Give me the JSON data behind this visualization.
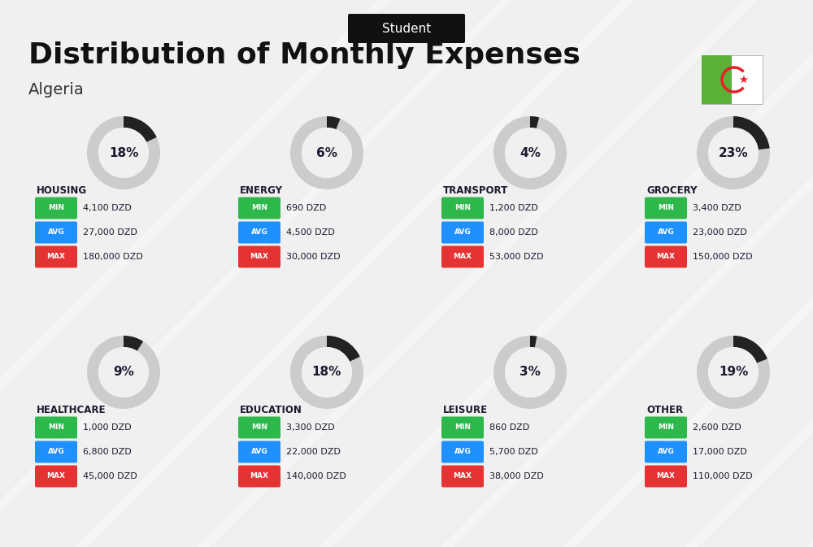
{
  "title": "Distribution of Monthly Expenses",
  "subtitle": "Algeria",
  "top_label": "Student",
  "bg_color": "#f0f0f0",
  "categories": [
    {
      "name": "HOUSING",
      "percent": 18,
      "min": "4,100 DZD",
      "avg": "27,000 DZD",
      "max": "180,000 DZD",
      "col": 0,
      "row": 0
    },
    {
      "name": "ENERGY",
      "percent": 6,
      "min": "690 DZD",
      "avg": "4,500 DZD",
      "max": "30,000 DZD",
      "col": 1,
      "row": 0
    },
    {
      "name": "TRANSPORT",
      "percent": 4,
      "min": "1,200 DZD",
      "avg": "8,000 DZD",
      "max": "53,000 DZD",
      "col": 2,
      "row": 0
    },
    {
      "name": "GROCERY",
      "percent": 23,
      "min": "3,400 DZD",
      "avg": "23,000 DZD",
      "max": "150,000 DZD",
      "col": 3,
      "row": 0
    },
    {
      "name": "HEALTHCARE",
      "percent": 9,
      "min": "1,000 DZD",
      "avg": "6,800 DZD",
      "max": "45,000 DZD",
      "col": 0,
      "row": 1
    },
    {
      "name": "EDUCATION",
      "percent": 18,
      "min": "3,300 DZD",
      "avg": "22,000 DZD",
      "max": "140,000 DZD",
      "col": 1,
      "row": 1
    },
    {
      "name": "LEISURE",
      "percent": 3,
      "min": "860 DZD",
      "avg": "5,700 DZD",
      "max": "38,000 DZD",
      "col": 2,
      "row": 1
    },
    {
      "name": "OTHER",
      "percent": 19,
      "min": "2,600 DZD",
      "avg": "17,000 DZD",
      "max": "110,000 DZD",
      "col": 3,
      "row": 1
    }
  ],
  "green_color": "#2db84b",
  "blue_color": "#1e90ff",
  "red_color": "#e53333",
  "dark_color": "#1a1a2e",
  "arc_color": "#222222",
  "arc_bg_color": "#cccccc",
  "label_color": "#ffffff",
  "title_color": "#111111",
  "subtitle_color": "#333333"
}
